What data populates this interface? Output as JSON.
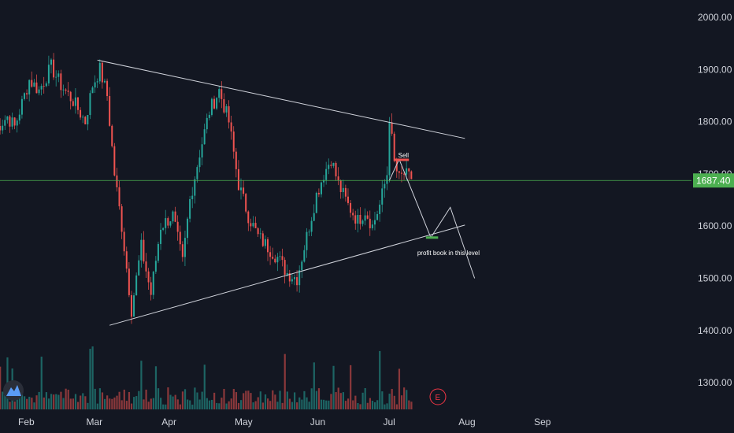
{
  "chart_data": {
    "type": "candlestick",
    "y_ticks": [
      2000,
      1900,
      1800,
      1700,
      1600,
      1500,
      1400,
      1300
    ],
    "y_tick_labels": [
      "2000.00",
      "1900.00",
      "1800.00",
      "1700.00",
      "1600.00",
      "1500.00",
      "1400.00",
      "1300.00"
    ],
    "ylim": [
      1250,
      2025
    ],
    "x_months": [
      "Feb",
      "Mar",
      "Apr",
      "May",
      "Jun",
      "Jul",
      "Aug",
      "Sep"
    ],
    "current_price": 1687.4,
    "current_price_label": "1687.40",
    "sell_label": "Sell",
    "profit_label": "profit book in this level",
    "event_marker": "E",
    "logo_text": "TV",
    "colors": {
      "background": "#131722",
      "up": "#26a69a",
      "down": "#ef5350",
      "trendline": "#d1d4dc",
      "price_line": "#4caf50",
      "text": "#d1d4dc"
    },
    "trendline_upper": {
      "from": [
        "2025-03-03",
        1918
      ],
      "to": [
        "2025-08-01",
        1768
      ]
    },
    "trendline_lower": {
      "from": [
        "2025-03-08",
        1410
      ],
      "to": [
        "2025-08-01",
        1602
      ]
    },
    "projection_path": [
      [
        "2025-07-01",
        1688
      ],
      [
        "2025-07-05",
        1728
      ],
      [
        "2025-07-18",
        1578
      ],
      [
        "2025-07-26",
        1636
      ],
      [
        "2025-08-05",
        1500
      ]
    ],
    "sell_zone": {
      "from": "2025-07-03",
      "to": "2025-07-09",
      "price": 1727
    },
    "profit_zone": {
      "from": "2025-07-16",
      "to": "2025-07-21",
      "price": 1578
    },
    "price_anchors": [
      [
        "2025-01-20",
        1785
      ],
      [
        "2025-01-25",
        1810
      ],
      [
        "2025-01-28",
        1790
      ],
      [
        "2025-02-03",
        1880
      ],
      [
        "2025-02-07",
        1860
      ],
      [
        "2025-02-12",
        1905
      ],
      [
        "2025-02-16",
        1870
      ],
      [
        "2025-02-21",
        1840
      ],
      [
        "2025-02-26",
        1800
      ],
      [
        "2025-03-01",
        1870
      ],
      [
        "2025-03-04",
        1900
      ],
      [
        "2025-03-07",
        1850
      ],
      [
        "2025-03-10",
        1700
      ],
      [
        "2025-03-13",
        1600
      ],
      [
        "2025-03-17",
        1440
      ],
      [
        "2025-03-21",
        1560
      ],
      [
        "2025-03-25",
        1470
      ],
      [
        "2025-03-29",
        1600
      ],
      [
        "2025-04-03",
        1620
      ],
      [
        "2025-04-07",
        1530
      ],
      [
        "2025-04-10",
        1650
      ],
      [
        "2025-04-14",
        1740
      ],
      [
        "2025-04-18",
        1820
      ],
      [
        "2025-04-22",
        1860
      ],
      [
        "2025-04-26",
        1800
      ],
      [
        "2025-04-30",
        1680
      ],
      [
        "2025-05-04",
        1620
      ],
      [
        "2025-05-08",
        1580
      ],
      [
        "2025-05-12",
        1560
      ],
      [
        "2025-05-16",
        1540
      ],
      [
        "2025-05-20",
        1510
      ],
      [
        "2025-05-24",
        1500
      ],
      [
        "2025-05-28",
        1580
      ],
      [
        "2025-06-01",
        1660
      ],
      [
        "2025-06-04",
        1700
      ],
      [
        "2025-06-07",
        1730
      ],
      [
        "2025-06-10",
        1680
      ],
      [
        "2025-06-14",
        1640
      ],
      [
        "2025-06-18",
        1610
      ],
      [
        "2025-06-21",
        1630
      ],
      [
        "2025-06-24",
        1600
      ],
      [
        "2025-06-27",
        1640
      ],
      [
        "2025-06-30",
        1700
      ],
      [
        "2025-07-01",
        1810
      ],
      [
        "2025-07-03",
        1720
      ],
      [
        "2025-07-05",
        1690
      ],
      [
        "2025-07-07",
        1700
      ],
      [
        "2025-07-10",
        1690
      ]
    ],
    "volume_note": "relative volume bars along the bottom of the price pane"
  }
}
